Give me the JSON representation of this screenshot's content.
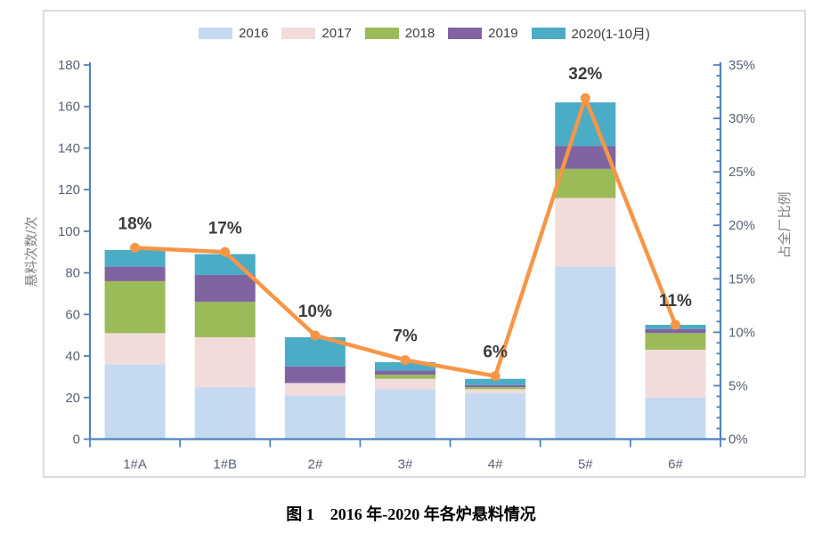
{
  "figure": {
    "caption": "图 1　2016 年-2020 年各炉悬料情况"
  },
  "chart_data": {
    "type": "combo: stacked-bar + line",
    "categories": [
      "1#A",
      "1#B",
      "2#",
      "3#",
      "4#",
      "5#",
      "6#"
    ],
    "series": [
      {
        "name": "2016",
        "color": "#c5d9f1",
        "values": [
          36,
          25,
          21,
          24,
          22,
          83,
          20
        ]
      },
      {
        "name": "2017",
        "color": "#f2dcdb",
        "values": [
          15,
          24,
          6,
          5,
          2,
          33,
          23
        ]
      },
      {
        "name": "2018",
        "color": "#9bbb59",
        "values": [
          25,
          17,
          0,
          2,
          1,
          14,
          8
        ]
      },
      {
        "name": "2019",
        "color": "#8064a2",
        "values": [
          7,
          13,
          8,
          2,
          1,
          11,
          2
        ]
      },
      {
        "name": "2020(1-10月)",
        "color": "#4bacc6",
        "values": [
          8,
          10,
          14,
          4,
          3,
          21,
          2
        ]
      }
    ],
    "bar_totals": [
      91,
      89,
      49,
      37,
      29,
      162,
      55
    ],
    "line_series": {
      "color": "#f79646",
      "values": [
        17.9,
        17.5,
        9.7,
        7.4,
        5.9,
        31.9,
        10.7
      ],
      "labels": [
        "18%",
        "17%",
        "10%",
        "7%",
        "6%",
        "32%",
        "11%"
      ]
    },
    "left_axis": {
      "label": "悬料次数/次",
      "min": 0,
      "max": 180,
      "step": 20
    },
    "right_axis": {
      "label": "占全厂比例",
      "min": 0,
      "max": 35,
      "step": 5,
      "minor_step": 1,
      "format": "percent"
    },
    "legend_position": "top",
    "grid": "off",
    "colors": {
      "axis": "#4f81bd",
      "tick_label": "#5a6374",
      "axis_title": "#808080",
      "data_label": "#3b3b3b",
      "frame_border": "#dcdcdc"
    }
  }
}
